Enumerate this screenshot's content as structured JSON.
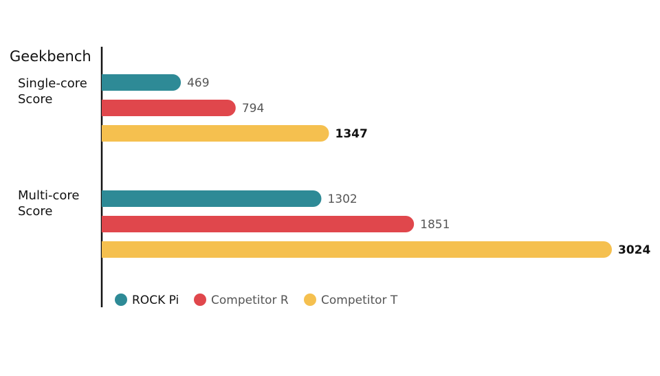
{
  "chart_data": {
    "type": "bar",
    "orientation": "horizontal",
    "title": "Geekbench",
    "categories": [
      "Single-core Score",
      "Multi-core Score"
    ],
    "series": [
      {
        "name": "ROCK Pi",
        "color": "#2e8a96",
        "values": [
          469,
          1302
        ]
      },
      {
        "name": "Competitor R",
        "color": "#e0474c",
        "values": [
          794,
          1851
        ]
      },
      {
        "name": "Competitor T",
        "color": "#f5c04f",
        "values": [
          1347,
          3024
        ]
      }
    ]
  }
}
